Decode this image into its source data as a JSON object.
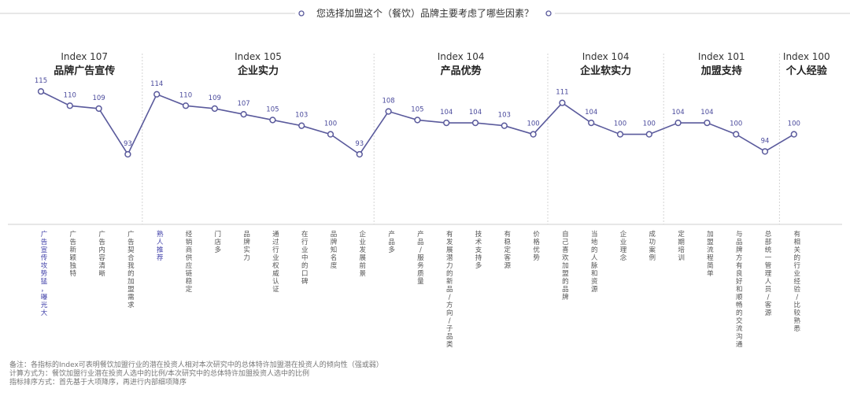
{
  "chart_data": {
    "type": "line",
    "title": "您选择加盟这个（餐饮）品牌主要考虑了哪些因素？",
    "series_color": "#5a5a9c",
    "highlight_color": "#3f3fa8",
    "ylim": [
      85,
      120
    ],
    "groups": [
      {
        "index_label": "Index 107",
        "name": "品牌广告宣传",
        "count": 4
      },
      {
        "index_label": "Index 105",
        "name": "企业实力",
        "count": 8
      },
      {
        "index_label": "Index 104",
        "name": "产品优势",
        "count": 6
      },
      {
        "index_label": "Index 104",
        "name": "企业软实力",
        "count": 4
      },
      {
        "index_label": "Index 101",
        "name": "加盟支持",
        "count": 4
      },
      {
        "index_label": "Index 100",
        "name": "个人经验",
        "count": 1
      }
    ],
    "categories": [
      "广告宣传攻势猛，曝光大",
      "广告新颖独特",
      "广告内容清晰",
      "广告契合我的加盟需求",
      "熟人推荐",
      "经销商供应链稳定",
      "门店多",
      "品牌实力",
      "通过行业权威认证",
      "在行业中的口碑",
      "品牌知名度",
      "企业发展前景",
      "产品多",
      "产品/服务质量",
      "有发展潜力的新品/方向/子品类",
      "技术支持多",
      "有稳定客源",
      "价格优势",
      "自己喜欢加盟的品牌",
      "当地的人脉和资源",
      "企业理念",
      "成功案例",
      "定期培训",
      "加盟流程简单",
      "与品牌方有良好和顺畅的交流沟通",
      "总部统一管理人员/客源",
      "有相关的行业经验/比较熟悉"
    ],
    "values": [
      115,
      110,
      109,
      93,
      114,
      110,
      109,
      107,
      105,
      103,
      100,
      93,
      108,
      105,
      104,
      104,
      103,
      100,
      111,
      104,
      100,
      100,
      104,
      104,
      100,
      94,
      100
    ],
    "highlighted": [
      0,
      4
    ]
  },
  "notes": [
    "备注：各指标的Index可表明餐饮加盟行业的潜在投资人相对本次研究中的总体特许加盟潜在投资人的倾向性（强或弱）",
    "计算方式为：餐饮加盟行业潜在投资人选中的比例/本次研究中的总体特许加盟投资人选中的比例",
    "指标排序方式：首先基于大项降序，再进行内部细项降序"
  ]
}
